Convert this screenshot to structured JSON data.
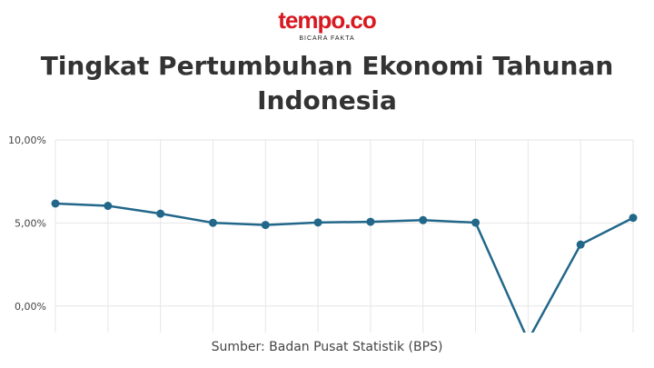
{
  "logo": {
    "name": "tempo.co",
    "tagline": "BICARA FAKTA"
  },
  "colors": {
    "brand": "#d71920",
    "series": "#22678a",
    "grid": "#e6e6e6"
  },
  "chart_data": {
    "type": "line",
    "title": "Tingkat Pertumbuhan Ekonomi Tahunan Indonesia",
    "source": "Sumber: Badan Pusat Statistik (BPS)",
    "xlabel": "",
    "ylabel": "",
    "ylim": [
      -1.6,
      10
    ],
    "yticks": [
      {
        "value": 10,
        "label": "10,00%"
      },
      {
        "value": 5,
        "label": "5,00%"
      },
      {
        "value": 0,
        "label": "0,00%"
      }
    ],
    "grid": true,
    "x": [
      1,
      2,
      3,
      4,
      5,
      6,
      7,
      8,
      9,
      10,
      11,
      12
    ],
    "series": [
      {
        "values": [
          6.17,
          6.03,
          5.56,
          5.01,
          4.88,
          5.03,
          5.07,
          5.17,
          5.02,
          -2.07,
          3.7,
          5.31
        ]
      }
    ]
  }
}
